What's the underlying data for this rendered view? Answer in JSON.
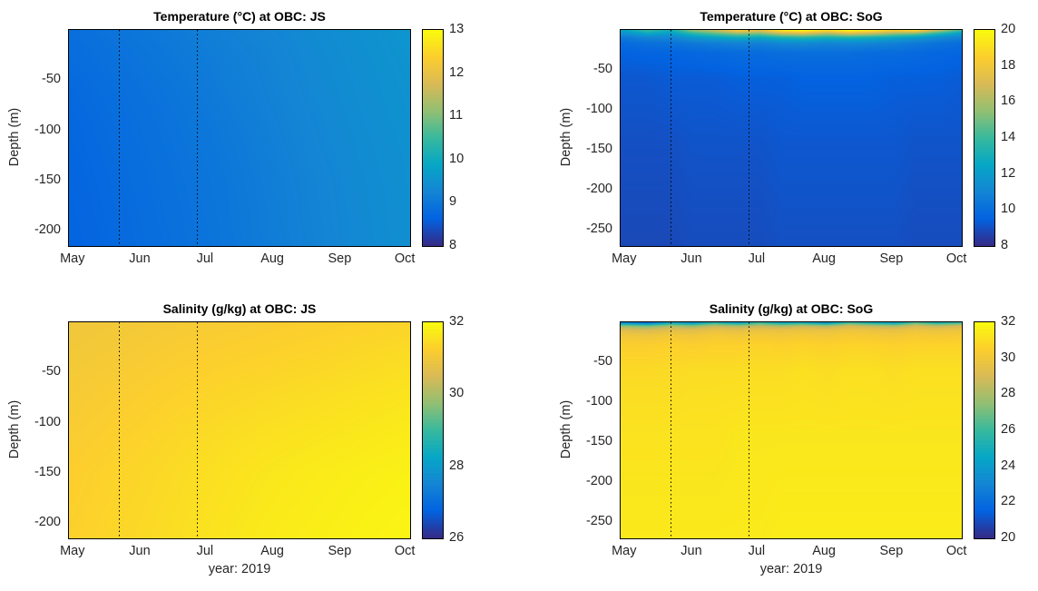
{
  "figure": {
    "background_color": "#ffffff",
    "axis_color": "#000000",
    "tick_label_color": "#262626"
  },
  "colormap": [
    "#352a87",
    "#0363e1",
    "#1485d4",
    "#06a7c6",
    "#38b99e",
    "#92bf73",
    "#d9ba56",
    "#fcce2e",
    "#f9fb0e"
  ],
  "chart_data": [
    {
      "id": "temp-js",
      "type": "heatmap",
      "title": "Temperature (°C) at OBC: JS",
      "ylabel": "Depth (m)",
      "xlabel": "",
      "colorbar": {
        "min": 8,
        "max": 13,
        "ticks": [
          8,
          9,
          10,
          11,
          12,
          13
        ]
      },
      "x_domain": [
        -2,
        155
      ],
      "x_ticks": [
        {
          "label": "May",
          "day": 0
        },
        {
          "label": "Jun",
          "day": 31
        },
        {
          "label": "Jul",
          "day": 61
        },
        {
          "label": "Aug",
          "day": 92
        },
        {
          "label": "Sep",
          "day": 123
        },
        {
          "label": "Oct",
          "day": 153
        }
      ],
      "y_domain": [
        0,
        -215
      ],
      "y_ticks": [
        -50,
        -100,
        -150,
        -200
      ],
      "dotted_line_days": [
        21,
        57
      ],
      "grid": {
        "days": [
          0,
          22,
          44,
          66,
          88,
          110,
          132,
          155
        ],
        "depths": [
          0,
          -30,
          -60,
          -90,
          -120,
          -150,
          -215
        ],
        "values": [
          [
            8.85,
            8.95,
            9.05,
            9.15,
            9.25,
            9.35,
            9.45,
            9.55
          ],
          [
            8.8,
            8.9,
            9.0,
            9.1,
            9.2,
            9.32,
            9.42,
            9.52
          ],
          [
            8.75,
            8.85,
            8.95,
            9.07,
            9.18,
            9.3,
            9.4,
            9.5
          ],
          [
            8.72,
            8.82,
            8.92,
            9.03,
            9.15,
            9.27,
            9.38,
            9.48
          ],
          [
            8.7,
            8.8,
            8.9,
            9.0,
            9.12,
            9.25,
            9.36,
            9.46
          ],
          [
            8.68,
            8.78,
            8.88,
            8.98,
            9.1,
            9.22,
            9.34,
            9.45
          ],
          [
            8.65,
            8.75,
            8.85,
            8.95,
            9.08,
            9.2,
            9.32,
            9.43
          ]
        ]
      }
    },
    {
      "id": "temp-sog",
      "type": "heatmap",
      "title": "Temperature (°C) at OBC: SoG",
      "ylabel": "Depth (m)",
      "xlabel": "",
      "colorbar": {
        "min": 8,
        "max": 20,
        "ticks": [
          8,
          10,
          12,
          14,
          16,
          18,
          20
        ]
      },
      "x_domain": [
        -2,
        155
      ],
      "x_ticks": [
        {
          "label": "May",
          "day": 0
        },
        {
          "label": "Jun",
          "day": 31
        },
        {
          "label": "Jul",
          "day": 61
        },
        {
          "label": "Aug",
          "day": 92
        },
        {
          "label": "Sep",
          "day": 123
        },
        {
          "label": "Oct",
          "day": 153
        }
      ],
      "y_domain": [
        0,
        -270
      ],
      "y_ticks": [
        -50,
        -100,
        -150,
        -200,
        -250
      ],
      "dotted_line_days": [
        21,
        57
      ],
      "grid": {
        "days": [
          0,
          10,
          21,
          31,
          41,
          52,
          62,
          72,
          82,
          93,
          103,
          113,
          124,
          134,
          144,
          155
        ],
        "depths": [
          0,
          -4,
          -9,
          -16,
          -28,
          -60,
          -140,
          -270
        ],
        "values": [
          [
            12.5,
            14.0,
            13.0,
            15.5,
            16.5,
            18.5,
            17.5,
            19.5,
            20.0,
            19.0,
            20.0,
            19.5,
            18.5,
            19.0,
            16.5,
            14.0
          ],
          [
            11.5,
            12.5,
            12.0,
            13.5,
            14.5,
            15.5,
            15.0,
            16.5,
            17.0,
            16.0,
            17.0,
            16.5,
            15.5,
            15.0,
            13.5,
            12.0
          ],
          [
            10.5,
            11.0,
            11.0,
            11.8,
            12.3,
            12.8,
            12.5,
            13.2,
            13.5,
            13.0,
            13.3,
            13.0,
            12.5,
            12.0,
            11.3,
            10.8
          ],
          [
            9.9,
            10.1,
            10.2,
            10.5,
            10.7,
            10.9,
            10.8,
            11.1,
            11.2,
            11.0,
            11.1,
            11.0,
            10.8,
            10.5,
            10.2,
            10.0
          ],
          [
            9.5,
            9.6,
            9.6,
            9.7,
            9.8,
            9.9,
            9.9,
            10.0,
            10.0,
            10.0,
            10.0,
            9.9,
            9.9,
            9.8,
            9.7,
            9.6
          ],
          [
            9.2,
            9.2,
            9.3,
            9.3,
            9.3,
            9.4,
            9.4,
            9.4,
            9.5,
            9.5,
            9.5,
            9.5,
            9.4,
            9.4,
            9.4,
            9.3
          ],
          [
            9.0,
            9.0,
            9.0,
            9.1,
            9.1,
            9.1,
            9.1,
            9.2,
            9.2,
            9.2,
            9.2,
            9.2,
            9.2,
            9.1,
            9.1,
            9.1
          ],
          [
            8.8,
            8.8,
            8.8,
            8.9,
            8.9,
            8.9,
            8.9,
            9.0,
            9.0,
            9.0,
            9.0,
            9.0,
            9.0,
            8.9,
            8.9,
            8.9
          ]
        ]
      }
    },
    {
      "id": "sal-js",
      "type": "heatmap",
      "title": "Salinity (g/kg) at OBC: JS",
      "ylabel": "Depth (m)",
      "xlabel": "year: 2019",
      "colorbar": {
        "min": 26,
        "max": 32,
        "ticks": [
          26,
          28,
          30,
          32
        ]
      },
      "x_domain": [
        -2,
        155
      ],
      "x_ticks": [
        {
          "label": "May",
          "day": 0
        },
        {
          "label": "Jun",
          "day": 31
        },
        {
          "label": "Jul",
          "day": 61
        },
        {
          "label": "Aug",
          "day": 92
        },
        {
          "label": "Sep",
          "day": 123
        },
        {
          "label": "Oct",
          "day": 153
        }
      ],
      "y_domain": [
        0,
        -215
      ],
      "y_ticks": [
        -50,
        -100,
        -150,
        -200
      ],
      "dotted_line_days": [
        21,
        57
      ],
      "grid": {
        "days": [
          0,
          22,
          44,
          66,
          88,
          110,
          132,
          155
        ],
        "depths": [
          0,
          -30,
          -60,
          -90,
          -120,
          -150,
          -215
        ],
        "values": [
          [
            31.0,
            31.05,
            31.1,
            31.15,
            31.2,
            31.25,
            31.3,
            31.35
          ],
          [
            31.05,
            31.1,
            31.18,
            31.25,
            31.3,
            31.35,
            31.42,
            31.48
          ],
          [
            31.1,
            31.18,
            31.26,
            31.34,
            31.4,
            31.46,
            31.52,
            31.58
          ],
          [
            31.15,
            31.24,
            31.33,
            31.42,
            31.5,
            31.55,
            31.62,
            31.68
          ],
          [
            31.2,
            31.3,
            31.4,
            31.5,
            31.58,
            31.64,
            31.7,
            31.76
          ],
          [
            31.25,
            31.35,
            31.45,
            31.55,
            31.65,
            31.72,
            31.78,
            31.83
          ],
          [
            31.3,
            31.4,
            31.5,
            31.62,
            31.72,
            31.78,
            31.84,
            31.9
          ]
        ]
      }
    },
    {
      "id": "sal-sog",
      "type": "heatmap",
      "title": "Salinity (g/kg) at OBC: SoG",
      "ylabel": "Depth (m)",
      "xlabel": "year: 2019",
      "colorbar": {
        "min": 20,
        "max": 32,
        "ticks": [
          20,
          22,
          24,
          26,
          28,
          30,
          32
        ]
      },
      "x_domain": [
        -2,
        155
      ],
      "x_ticks": [
        {
          "label": "May",
          "day": 0
        },
        {
          "label": "Jun",
          "day": 31
        },
        {
          "label": "Jul",
          "day": 61
        },
        {
          "label": "Aug",
          "day": 92
        },
        {
          "label": "Sep",
          "day": 123
        },
        {
          "label": "Oct",
          "day": 153
        }
      ],
      "y_domain": [
        0,
        -270
      ],
      "y_ticks": [
        -50,
        -100,
        -150,
        -200,
        -250
      ],
      "dotted_line_days": [
        21,
        57
      ],
      "grid": {
        "days": [
          0,
          10,
          21,
          31,
          41,
          52,
          62,
          72,
          82,
          93,
          103,
          113,
          124,
          134,
          144,
          155
        ],
        "depths": [
          0,
          -4,
          -9,
          -16,
          -28,
          -60,
          -140,
          -270
        ],
        "values": [
          [
            23.0,
            22.0,
            24.5,
            23.5,
            25.5,
            24.0,
            26.0,
            24.5,
            25.0,
            23.5,
            26.0,
            25.0,
            24.0,
            26.5,
            25.0,
            26.0
          ],
          [
            27.5,
            27.0,
            28.0,
            27.5,
            28.5,
            28.0,
            28.5,
            28.0,
            28.5,
            28.0,
            29.0,
            28.5,
            28.0,
            29.0,
            28.5,
            29.0
          ],
          [
            29.2,
            29.0,
            29.4,
            29.3,
            29.6,
            29.5,
            29.7,
            29.6,
            29.7,
            29.6,
            29.8,
            29.7,
            29.6,
            29.8,
            29.7,
            29.8
          ],
          [
            30.0,
            29.9,
            30.1,
            30.0,
            30.2,
            30.1,
            30.2,
            30.1,
            30.2,
            30.1,
            30.3,
            30.2,
            30.1,
            30.3,
            30.2,
            30.3
          ],
          [
            30.5,
            30.5,
            30.6,
            30.5,
            30.6,
            30.6,
            30.7,
            30.6,
            30.7,
            30.6,
            30.7,
            30.7,
            30.6,
            30.7,
            30.7,
            30.7
          ],
          [
            30.9,
            30.9,
            30.9,
            31.0,
            31.0,
            31.0,
            31.0,
            31.0,
            31.1,
            31.0,
            31.1,
            31.1,
            31.0,
            31.1,
            31.1,
            31.1
          ],
          [
            31.2,
            31.2,
            31.2,
            31.2,
            31.2,
            31.3,
            31.3,
            31.3,
            31.3,
            31.3,
            31.3,
            31.3,
            31.3,
            31.3,
            31.3,
            31.3
          ],
          [
            31.4,
            31.4,
            31.4,
            31.4,
            31.4,
            31.4,
            31.4,
            31.5,
            31.5,
            31.5,
            31.5,
            31.5,
            31.5,
            31.5,
            31.5,
            31.5
          ]
        ]
      }
    }
  ]
}
